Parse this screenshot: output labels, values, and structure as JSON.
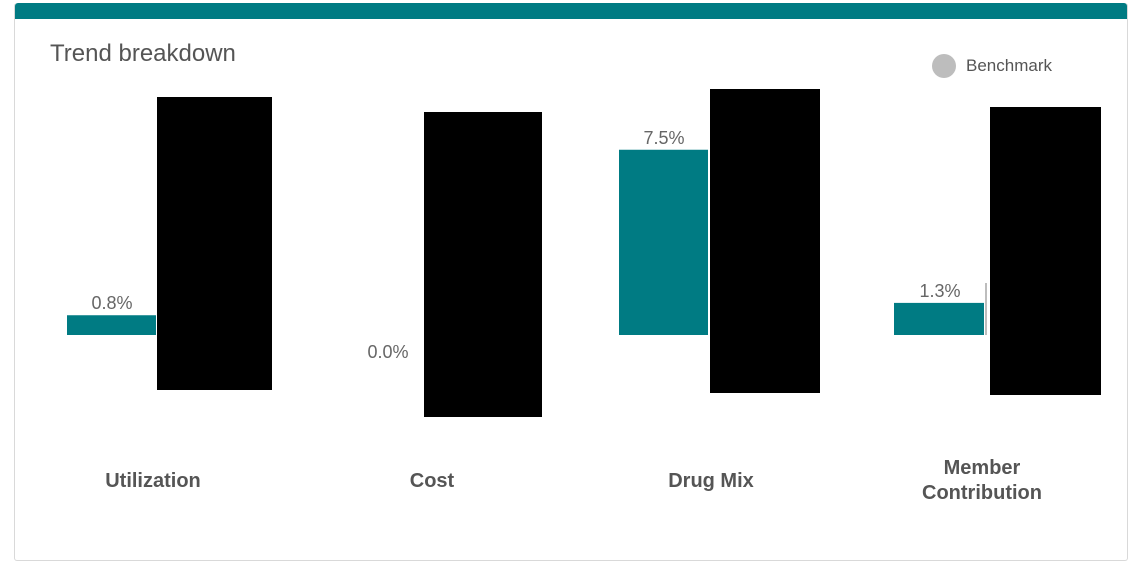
{
  "panel": {
    "title": "Trend breakdown"
  },
  "legend": {
    "label": "Benchmark",
    "swatch_color": "#bdbdbd"
  },
  "colors": {
    "accent": "#007b83",
    "redaction": "#000000",
    "label_text": "#666666",
    "category_text": "#555555"
  },
  "chart_data": {
    "type": "bar",
    "title": "Trend breakdown",
    "xlabel": "",
    "ylabel": "",
    "categories": [
      "Utilization",
      "Cost",
      "Drug Mix",
      "Member Contribution"
    ],
    "category_lines": [
      [
        "Utilization"
      ],
      [
        "Cost"
      ],
      [
        "Drug Mix"
      ],
      [
        "Member",
        "Contribution"
      ]
    ],
    "series": [
      {
        "values": [
          0.8,
          0.0,
          7.5,
          1.3
        ],
        "labels": [
          "0.8%",
          "0.0%",
          "7.5%",
          "1.3%"
        ],
        "color": "#007b83"
      }
    ],
    "legend": [
      "Benchmark"
    ],
    "legend_position": "top-right",
    "grid": false,
    "redacted_benchmark_bars": true
  }
}
